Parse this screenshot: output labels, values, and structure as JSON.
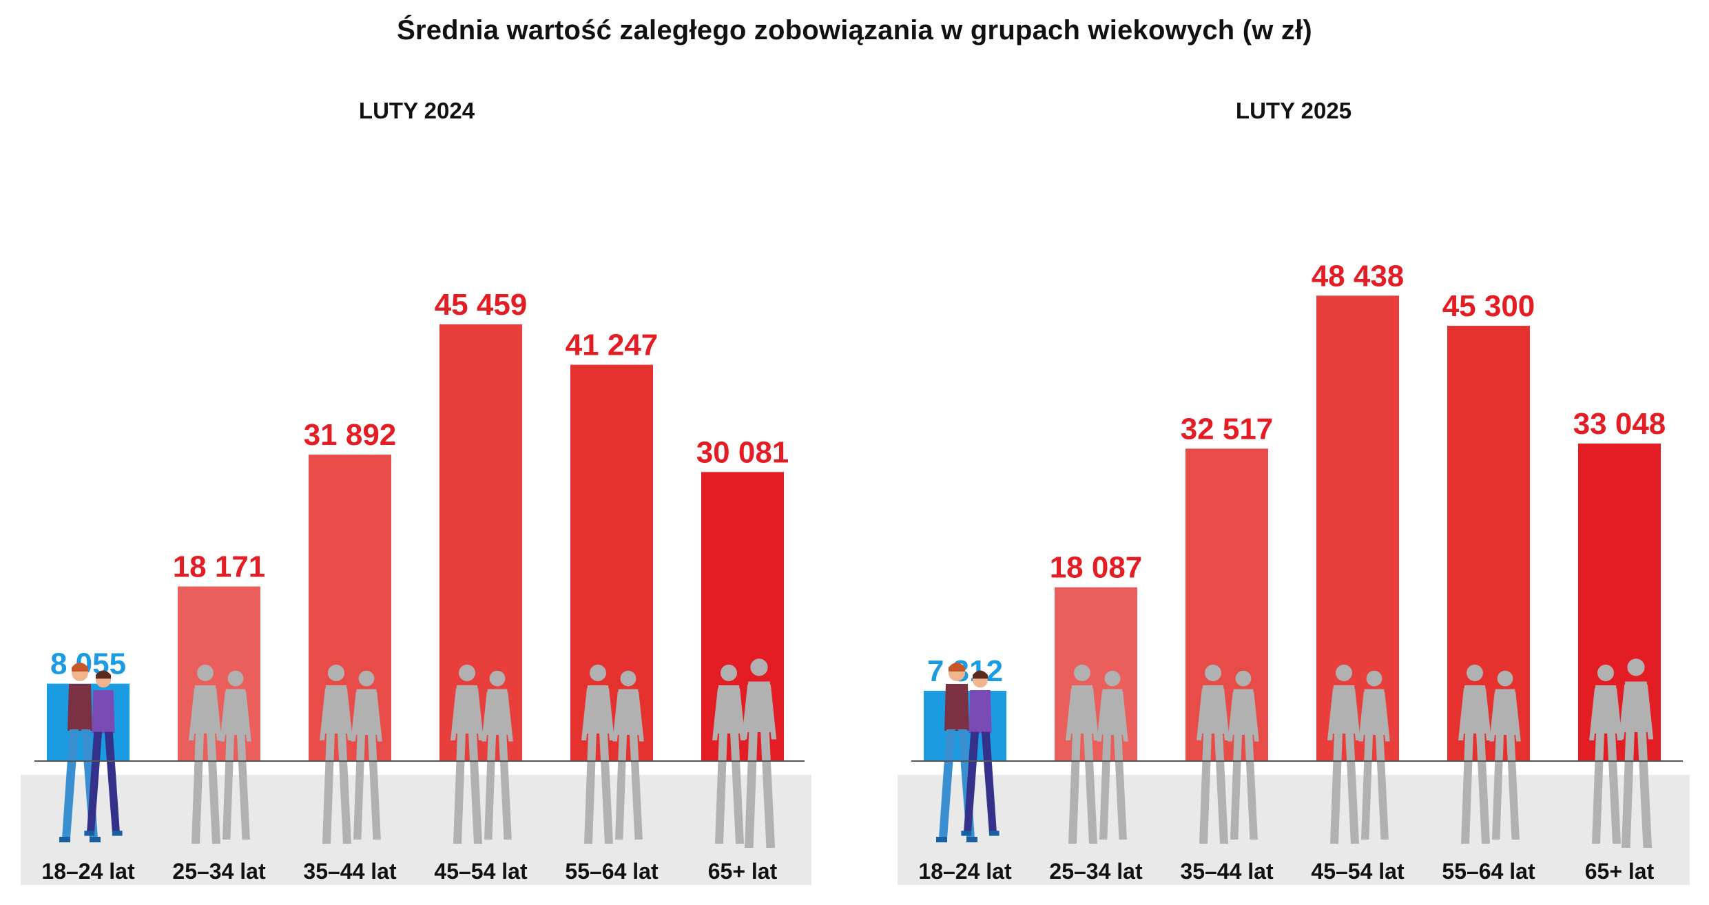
{
  "title": "Średnia wartość zaległego zobowiązania w grupach wiekowych (w zł)",
  "colors": {
    "highlight": "#1b9ce2",
    "bars": [
      "#1b9ce2",
      "#ea5f5b",
      "#e84c48",
      "#e83f3c",
      "#e5322f",
      "#e31d23"
    ],
    "value_red": "#e31d23",
    "floor": "#e9e9e9",
    "silhouette": "#b1b1b1"
  },
  "chart_data": [
    {
      "type": "bar",
      "title": "LUTY 2024",
      "categories": [
        "18–24 lat",
        "25–34 lat",
        "35–44 lat",
        "45–54 lat",
        "55–64 lat",
        "65+ lat"
      ],
      "values": [
        8055,
        18171,
        31892,
        45459,
        41247,
        30081
      ],
      "value_labels": [
        "8 055",
        "18 171",
        "31 892",
        "45 459",
        "41 247",
        "30 081"
      ],
      "ylim": [
        0,
        50000
      ],
      "grid": false,
      "legend": "none"
    },
    {
      "type": "bar",
      "title": "LUTY 2025",
      "categories": [
        "18–24 lat",
        "25–34 lat",
        "35–44 lat",
        "45–54 lat",
        "55–64 lat",
        "65+ lat"
      ],
      "values": [
        7312,
        18087,
        32517,
        48438,
        45300,
        33048
      ],
      "value_labels": [
        "7 312",
        "18 087",
        "32 517",
        "48 438",
        "45 300",
        "33 048"
      ],
      "ylim": [
        0,
        50000
      ],
      "grid": false,
      "legend": "none"
    }
  ]
}
